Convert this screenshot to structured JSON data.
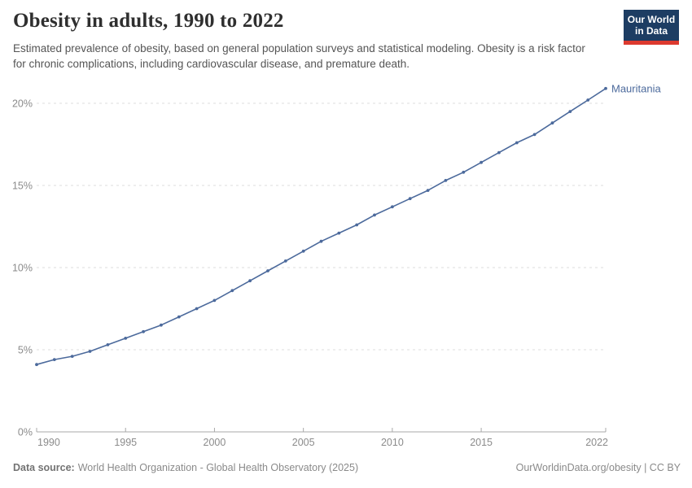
{
  "header": {
    "title": "Obesity in adults, 1990 to 2022",
    "subtitle": "Estimated prevalence of obesity, based on general population surveys and statistical modeling. Obesity is a risk factor for chronic complications, including cardiovascular disease, and premature death.",
    "logo": {
      "line1": "Our World",
      "line2": "in Data"
    }
  },
  "chart_data": {
    "type": "line",
    "title": "Obesity in adults, 1990 to 2022",
    "x": [
      1990,
      1991,
      1992,
      1993,
      1994,
      1995,
      1996,
      1997,
      1998,
      1999,
      2000,
      2001,
      2002,
      2003,
      2004,
      2005,
      2006,
      2007,
      2008,
      2009,
      2010,
      2011,
      2012,
      2013,
      2014,
      2015,
      2016,
      2017,
      2018,
      2019,
      2020,
      2021,
      2022
    ],
    "series": [
      {
        "name": "Mauritania",
        "color": "#4c6a9c",
        "values": [
          4.1,
          4.4,
          4.6,
          4.9,
          5.3,
          5.7,
          6.1,
          6.5,
          7.0,
          7.5,
          8.0,
          8.6,
          9.2,
          9.8,
          10.4,
          11.0,
          11.6,
          12.1,
          12.6,
          13.2,
          13.7,
          14.2,
          14.7,
          15.3,
          15.8,
          16.4,
          17.0,
          17.6,
          18.1,
          18.8,
          19.5,
          20.2,
          20.9
        ]
      }
    ],
    "unit": "%",
    "ylabel": "",
    "xlabel": "",
    "ylim": [
      0,
      21
    ],
    "yticks": [
      0,
      5,
      10,
      15,
      20
    ],
    "xticks": [
      1990,
      1995,
      2000,
      2005,
      2010,
      2015,
      2022
    ],
    "grid": "horizontal-dashed",
    "legend": "end-of-line-label",
    "marker": "dot"
  },
  "colors": {
    "series_line": "#4c6a9c",
    "axis": "#a8a8a8",
    "gridline": "#dedede",
    "tick_label": "#8b8b8b",
    "logo_bg": "#1d3d63",
    "logo_bar": "#dc3a2f"
  },
  "footer": {
    "source_label": "Data source:",
    "source_text": "World Health Organization - Global Health Observatory (2025)",
    "credit": "OurWorldinData.org/obesity | CC BY"
  }
}
